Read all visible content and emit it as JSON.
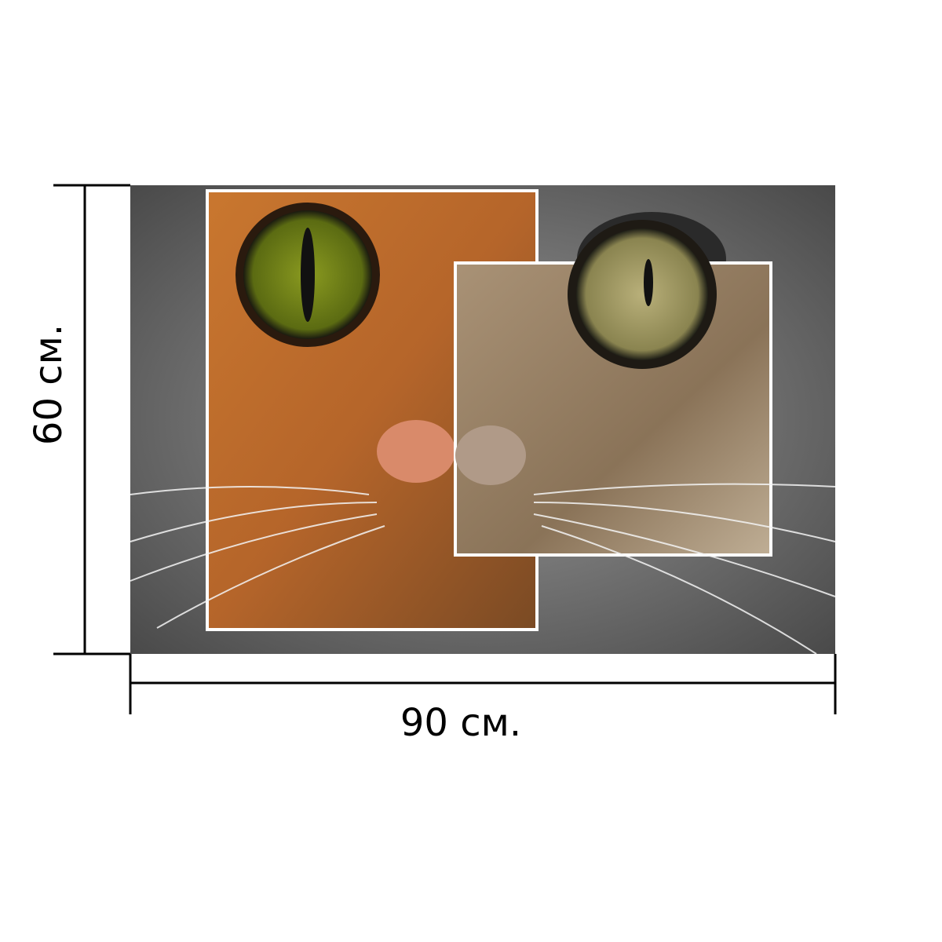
{
  "dimensions": {
    "height_label": "60 см.",
    "width_label": "90 см."
  }
}
